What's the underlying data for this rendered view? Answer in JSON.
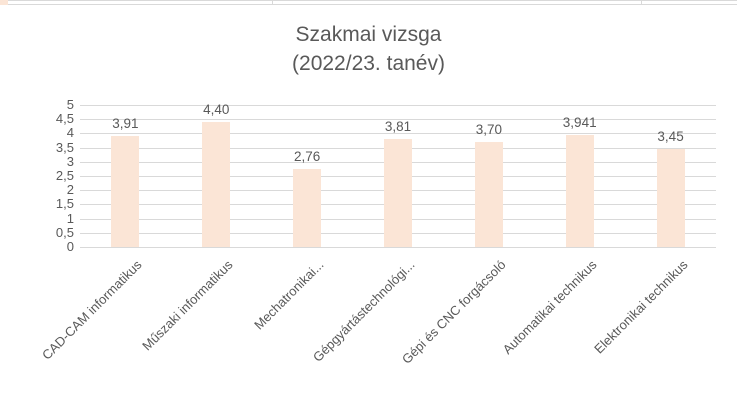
{
  "top_strip": {
    "line_color": "#d9d9d9",
    "cell_color": "#fbe5d6",
    "tick_positions": [
      272,
      641
    ]
  },
  "chart_data": {
    "type": "bar",
    "title": "Szakmai vizsga",
    "subtitle": "(2022/23. tanév)",
    "categories": [
      "CAD-CAM informatikus",
      "Műszaki informatikus",
      "Mechatronikai...",
      "Gépgyártástechnológi...",
      "Gépi és CNC forgácsoló",
      "Automatikai technikus",
      "Elektronikai technikus"
    ],
    "values": [
      3.91,
      4.4,
      2.76,
      3.81,
      3.7,
      3.941,
      3.45
    ],
    "data_labels": [
      "3,91",
      "4,40",
      "2,76",
      "3,81",
      "3,70",
      "3,941",
      "3,45"
    ],
    "ylim": [
      0,
      5
    ],
    "ytick_step": 0.5,
    "ytick_labels": [
      "0",
      "0,5",
      "1",
      "1,5",
      "2",
      "2,5",
      "3",
      "3,5",
      "4",
      "4,5",
      "5"
    ],
    "xlabel": "",
    "ylabel": "",
    "grid": true,
    "legend": "none",
    "bar_color": "#fbe5d6",
    "gridline_color": "#d9d9d9",
    "text_color": "#595959"
  }
}
